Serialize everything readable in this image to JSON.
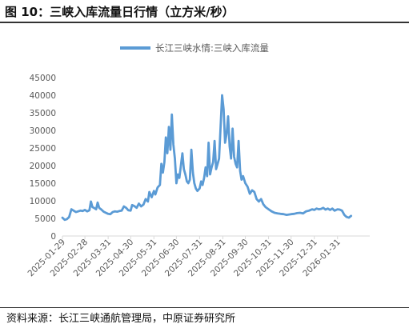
{
  "title": "图 10：三峡入库流量日行情（立方米/秒）",
  "source": "资料来源：长江三峡通航管理局，中原证券研究所",
  "chart_data": {
    "type": "line",
    "title": "",
    "xlabel": "",
    "ylabel": "",
    "ylim": [
      0,
      45000
    ],
    "yticks": [
      "0",
      "5000",
      "10000",
      "15000",
      "20000",
      "25000",
      "30000",
      "35000",
      "40000",
      "45000"
    ],
    "xticks": [
      "2025-01-29",
      "2025-02-28",
      "2025-03-31",
      "2025-04-30",
      "2025-05-31",
      "2025-06-30",
      "2025-07-31",
      "2025-08-31",
      "2025-09-30",
      "2025-10-31",
      "2025-11-30",
      "2025-12-31",
      "2026-01-31"
    ],
    "xrange": [
      "2025-01-29",
      "2026-03-15"
    ],
    "legend_position": "top",
    "grid": false,
    "line_color": "#5b9bd5",
    "series": [
      {
        "name": "长江三峡水情:三峡入库流量",
        "points": [
          [
            "2025-01-29",
            5200
          ],
          [
            "2025-02-01",
            4600
          ],
          [
            "2025-02-04",
            4800
          ],
          [
            "2025-02-07",
            5400
          ],
          [
            "2025-02-10",
            7600
          ],
          [
            "2025-02-13",
            7200
          ],
          [
            "2025-02-16",
            6800
          ],
          [
            "2025-02-19",
            7000
          ],
          [
            "2025-02-22",
            7200
          ],
          [
            "2025-02-25",
            7100
          ],
          [
            "2025-02-28",
            7400
          ],
          [
            "2025-03-03",
            7000
          ],
          [
            "2025-03-06",
            7300
          ],
          [
            "2025-03-08",
            9800
          ],
          [
            "2025-03-10",
            8200
          ],
          [
            "2025-03-12",
            8000
          ],
          [
            "2025-03-15",
            7600
          ],
          [
            "2025-03-17",
            9500
          ],
          [
            "2025-03-19",
            8000
          ],
          [
            "2025-03-22",
            7500
          ],
          [
            "2025-03-25",
            6900
          ],
          [
            "2025-03-28",
            6600
          ],
          [
            "2025-03-31",
            6300
          ],
          [
            "2025-04-03",
            6200
          ],
          [
            "2025-04-06",
            6800
          ],
          [
            "2025-04-09",
            7000
          ],
          [
            "2025-04-12",
            6900
          ],
          [
            "2025-04-15",
            7100
          ],
          [
            "2025-04-18",
            7200
          ],
          [
            "2025-04-21",
            8400
          ],
          [
            "2025-04-24",
            8000
          ],
          [
            "2025-04-27",
            7300
          ],
          [
            "2025-04-30",
            7200
          ],
          [
            "2025-05-02",
            8800
          ],
          [
            "2025-05-05",
            8500
          ],
          [
            "2025-05-08",
            8000
          ],
          [
            "2025-05-11",
            9200
          ],
          [
            "2025-05-14",
            8400
          ],
          [
            "2025-05-17",
            8900
          ],
          [
            "2025-05-20",
            10500
          ],
          [
            "2025-05-23",
            9800
          ],
          [
            "2025-05-25",
            12500
          ],
          [
            "2025-05-28",
            11000
          ],
          [
            "2025-05-31",
            12800
          ],
          [
            "2025-06-02",
            11800
          ],
          [
            "2025-06-05",
            13800
          ],
          [
            "2025-06-08",
            14500
          ],
          [
            "2025-06-10",
            20500
          ],
          [
            "2025-06-12",
            18000
          ],
          [
            "2025-06-14",
            21000
          ],
          [
            "2025-06-16",
            28000
          ],
          [
            "2025-06-18",
            23500
          ],
          [
            "2025-06-20",
            31000
          ],
          [
            "2025-06-22",
            24500
          ],
          [
            "2025-06-24",
            34500
          ],
          [
            "2025-06-26",
            26000
          ],
          [
            "2025-06-28",
            22000
          ],
          [
            "2025-06-30",
            15000
          ],
          [
            "2025-07-02",
            17500
          ],
          [
            "2025-07-04",
            16500
          ],
          [
            "2025-07-06",
            20000
          ],
          [
            "2025-07-08",
            23500
          ],
          [
            "2025-07-10",
            19000
          ],
          [
            "2025-07-12",
            17500
          ],
          [
            "2025-07-14",
            15500
          ],
          [
            "2025-07-16",
            15000
          ],
          [
            "2025-07-18",
            16000
          ],
          [
            "2025-07-20",
            24500
          ],
          [
            "2025-07-22",
            18000
          ],
          [
            "2025-07-24",
            15000
          ],
          [
            "2025-07-26",
            13500
          ],
          [
            "2025-07-28",
            12800
          ],
          [
            "2025-07-31",
            13500
          ],
          [
            "2025-08-02",
            15500
          ],
          [
            "2025-08-04",
            14500
          ],
          [
            "2025-08-06",
            16500
          ],
          [
            "2025-08-08",
            19500
          ],
          [
            "2025-08-10",
            17000
          ],
          [
            "2025-08-12",
            26500
          ],
          [
            "2025-08-14",
            17500
          ],
          [
            "2025-08-16",
            19500
          ],
          [
            "2025-08-18",
            21000
          ],
          [
            "2025-08-20",
            27000
          ],
          [
            "2025-08-22",
            19000
          ],
          [
            "2025-08-24",
            20500
          ],
          [
            "2025-08-26",
            22000
          ],
          [
            "2025-08-28",
            31000
          ],
          [
            "2025-08-30",
            40000
          ],
          [
            "2025-09-01",
            36000
          ],
          [
            "2025-09-03",
            26500
          ],
          [
            "2025-09-05",
            29000
          ],
          [
            "2025-09-07",
            34000
          ],
          [
            "2025-09-09",
            25500
          ],
          [
            "2025-09-11",
            22000
          ],
          [
            "2025-09-13",
            30500
          ],
          [
            "2025-09-15",
            22500
          ],
          [
            "2025-09-17",
            20500
          ],
          [
            "2025-09-19",
            19500
          ],
          [
            "2025-09-21",
            27000
          ],
          [
            "2025-09-23",
            18500
          ],
          [
            "2025-09-25",
            16000
          ],
          [
            "2025-09-27",
            17000
          ],
          [
            "2025-09-30",
            15000
          ],
          [
            "2025-10-03",
            14000
          ],
          [
            "2025-10-06",
            12000
          ],
          [
            "2025-10-09",
            13000
          ],
          [
            "2025-10-12",
            12500
          ],
          [
            "2025-10-15",
            10500
          ],
          [
            "2025-10-18",
            9800
          ],
          [
            "2025-10-21",
            10500
          ],
          [
            "2025-10-24",
            9000
          ],
          [
            "2025-10-27",
            8200
          ],
          [
            "2025-10-31",
            7600
          ],
          [
            "2025-11-04",
            7000
          ],
          [
            "2025-11-08",
            6600
          ],
          [
            "2025-11-12",
            6400
          ],
          [
            "2025-11-16",
            6300
          ],
          [
            "2025-11-20",
            6200
          ],
          [
            "2025-11-24",
            6000
          ],
          [
            "2025-11-30",
            6200
          ],
          [
            "2025-12-04",
            6300
          ],
          [
            "2025-12-08",
            6500
          ],
          [
            "2025-12-12",
            6600
          ],
          [
            "2025-12-16",
            6400
          ],
          [
            "2025-12-20",
            7000
          ],
          [
            "2025-12-24",
            7200
          ],
          [
            "2025-12-28",
            7600
          ],
          [
            "2025-12-31",
            7400
          ],
          [
            "2026-01-03",
            7800
          ],
          [
            "2026-01-06",
            7600
          ],
          [
            "2026-01-09",
            7700
          ],
          [
            "2026-01-12",
            8000
          ],
          [
            "2026-01-15",
            7500
          ],
          [
            "2026-01-18",
            7800
          ],
          [
            "2026-01-21",
            7400
          ],
          [
            "2026-01-24",
            7800
          ],
          [
            "2026-01-27",
            7200
          ],
          [
            "2026-01-31",
            7600
          ],
          [
            "2026-02-03",
            7500
          ],
          [
            "2026-02-06",
            7200
          ],
          [
            "2026-02-09",
            6000
          ],
          [
            "2026-02-12",
            5400
          ],
          [
            "2026-02-15",
            5200
          ],
          [
            "2026-02-18",
            5700
          ]
        ]
      }
    ]
  }
}
